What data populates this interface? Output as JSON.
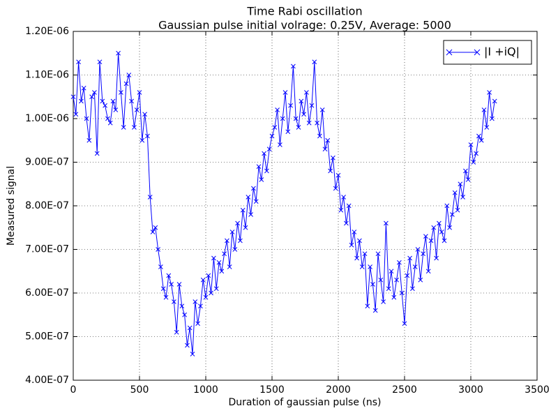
{
  "chart_data": {
    "type": "line",
    "title": "Time Rabi oscillation",
    "subtitle": "Gaussian pulse initial volrage: 0.25V, Average: 5000",
    "x_label": "Duration of gaussian pulse (ns)",
    "y_label": "Measured signal",
    "legend": "upper right",
    "grid": true,
    "xlim": [
      0,
      3500
    ],
    "xticks": [
      0,
      500,
      1000,
      1500,
      2000,
      2500,
      3000,
      3500
    ],
    "ylim": [
      4e-07,
      1.2e-06
    ],
    "yticks": [
      {
        "value": 4e-07,
        "label": "4.00E-07"
      },
      {
        "value": 5e-07,
        "label": "5.00E-07"
      },
      {
        "value": 6e-07,
        "label": "6.00E-07"
      },
      {
        "value": 7e-07,
        "label": "7.00E-07"
      },
      {
        "value": 8e-07,
        "label": "8.00E-07"
      },
      {
        "value": 9e-07,
        "label": "9.00E-07"
      },
      {
        "value": 1e-06,
        "label": "1.00E-06"
      },
      {
        "value": 1.1e-06,
        "label": "1.10E-06"
      },
      {
        "value": 1.2e-06,
        "label": "1.20E-06"
      }
    ],
    "x": [
      0,
      20,
      40,
      60,
      80,
      100,
      120,
      140,
      160,
      180,
      200,
      220,
      240,
      260,
      280,
      300,
      320,
      340,
      360,
      380,
      400,
      420,
      440,
      460,
      480,
      500,
      520,
      540,
      560,
      580,
      600,
      620,
      640,
      660,
      680,
      700,
      720,
      740,
      760,
      780,
      800,
      820,
      840,
      860,
      880,
      900,
      920,
      940,
      960,
      980,
      1000,
      1020,
      1040,
      1060,
      1080,
      1100,
      1120,
      1140,
      1160,
      1180,
      1200,
      1220,
      1240,
      1260,
      1280,
      1300,
      1320,
      1340,
      1360,
      1380,
      1400,
      1420,
      1440,
      1460,
      1480,
      1500,
      1520,
      1540,
      1560,
      1580,
      1600,
      1620,
      1640,
      1660,
      1680,
      1700,
      1720,
      1740,
      1760,
      1780,
      1800,
      1820,
      1840,
      1860,
      1880,
      1900,
      1920,
      1940,
      1960,
      1980,
      2000,
      2020,
      2040,
      2060,
      2080,
      2100,
      2120,
      2140,
      2160,
      2180,
      2200,
      2220,
      2240,
      2260,
      2280,
      2300,
      2320,
      2340,
      2360,
      2380,
      2400,
      2420,
      2440,
      2460,
      2480,
      2500,
      2520,
      2540,
      2560,
      2580,
      2600,
      2620,
      2640,
      2660,
      2680,
      2700,
      2720,
      2740,
      2760,
      2780,
      2800,
      2820,
      2840,
      2860,
      2880,
      2900,
      2920,
      2940,
      2960,
      2980,
      3000,
      3020,
      3040,
      3060,
      3080,
      3100,
      3120,
      3140,
      3160,
      3180
    ],
    "series": [
      {
        "name": "|I +iQ|",
        "color": "#0000ff",
        "values": [
          1.05e-06,
          1.01e-06,
          1.13e-06,
          1.04e-06,
          1.07e-06,
          1e-06,
          9.5e-07,
          1.05e-06,
          1.06e-06,
          9.2e-07,
          1.13e-06,
          1.04e-06,
          1.03e-06,
          1e-06,
          9.9e-07,
          1.04e-06,
          1.02e-06,
          1.15e-06,
          1.06e-06,
          9.8e-07,
          1.08e-06,
          1.1e-06,
          1.04e-06,
          9.8e-07,
          1.02e-06,
          1.06e-06,
          9.5e-07,
          1.01e-06,
          9.6e-07,
          8.2e-07,
          7.4e-07,
          7.5e-07,
          7e-07,
          6.6e-07,
          6.1e-07,
          5.9e-07,
          6.4e-07,
          6.2e-07,
          5.8e-07,
          5.1e-07,
          6.2e-07,
          5.7e-07,
          5.5e-07,
          4.8e-07,
          5.2e-07,
          4.6e-07,
          5.8e-07,
          5.3e-07,
          5.7e-07,
          6.3e-07,
          5.9e-07,
          6.4e-07,
          6e-07,
          6.8e-07,
          6.1e-07,
          6.7e-07,
          6.5e-07,
          6.9e-07,
          7.2e-07,
          6.6e-07,
          7.4e-07,
          7e-07,
          7.6e-07,
          7.2e-07,
          7.9e-07,
          7.5e-07,
          8.2e-07,
          7.8e-07,
          8.4e-07,
          8.1e-07,
          8.9e-07,
          8.6e-07,
          9.2e-07,
          8.8e-07,
          9.3e-07,
          9.6e-07,
          9.8e-07,
          1.02e-06,
          9.4e-07,
          1e-06,
          1.06e-06,
          9.7e-07,
          1.03e-06,
          1.12e-06,
          1e-06,
          9.8e-07,
          1.04e-06,
          1.01e-06,
          1.06e-06,
          9.9e-07,
          1.03e-06,
          1.13e-06,
          9.9e-07,
          9.6e-07,
          1.02e-06,
          9.3e-07,
          9.5e-07,
          8.8e-07,
          9.1e-07,
          8.4e-07,
          8.7e-07,
          7.9e-07,
          8.2e-07,
          7.6e-07,
          8e-07,
          7.1e-07,
          7.4e-07,
          6.8e-07,
          7.2e-07,
          6.6e-07,
          6.9e-07,
          5.7e-07,
          6.6e-07,
          6.2e-07,
          5.6e-07,
          6.9e-07,
          6.3e-07,
          5.8e-07,
          7.6e-07,
          6.1e-07,
          6.5e-07,
          5.9e-07,
          6.3e-07,
          6.7e-07,
          6e-07,
          5.3e-07,
          6.4e-07,
          6.8e-07,
          6.1e-07,
          6.6e-07,
          7e-07,
          6.3e-07,
          6.9e-07,
          7.3e-07,
          6.5e-07,
          7.2e-07,
          7.5e-07,
          6.8e-07,
          7.6e-07,
          7.4e-07,
          7.2e-07,
          8e-07,
          7.5e-07,
          7.8e-07,
          8.3e-07,
          7.9e-07,
          8.5e-07,
          8.2e-07,
          8.8e-07,
          8.6e-07,
          9.4e-07,
          9e-07,
          9.2e-07,
          9.6e-07,
          9.5e-07,
          1.02e-06,
          9.8e-07,
          1.06e-06,
          1e-06,
          1.04e-06
        ]
      }
    ]
  }
}
